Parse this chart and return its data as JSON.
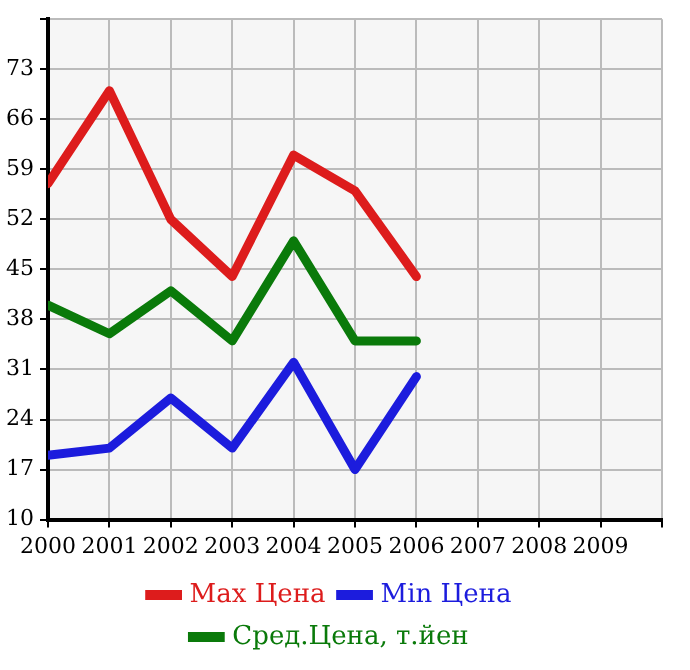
{
  "chart_data": {
    "type": "line",
    "x": [
      2000,
      2001,
      2002,
      2003,
      2004,
      2005,
      2006
    ],
    "xlim": [
      2000,
      2010
    ],
    "xticks": [
      2000,
      2001,
      2002,
      2003,
      2004,
      2005,
      2006,
      2007,
      2008,
      2009,
      {
        "value": 2010,
        "label": null
      }
    ],
    "ylim": [
      10,
      80
    ],
    "yticks": [
      10,
      17,
      24,
      31,
      38,
      45,
      52,
      59,
      66,
      73,
      {
        "value": 80,
        "label": null
      }
    ],
    "series": [
      {
        "name": "Max Цена",
        "color": "#dd1c1c",
        "values": [
          57,
          70,
          52,
          44,
          61,
          56,
          44
        ]
      },
      {
        "name": "Min Цена",
        "color": "#1c1cdd",
        "values": [
          19,
          20,
          27,
          20,
          32,
          17,
          30
        ]
      },
      {
        "name": "Сред.Цена, т.йен",
        "color": "#0a7a0a",
        "values": [
          40,
          36,
          42,
          35,
          49,
          35,
          35
        ]
      }
    ],
    "grid": true,
    "legend": "bottom",
    "marker": "none",
    "line_style": "solid"
  }
}
